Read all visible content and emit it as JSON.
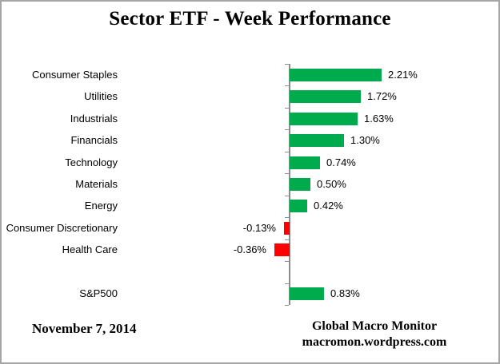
{
  "title": "Sector ETF - Week Performance",
  "chart_data": {
    "type": "bar",
    "orientation": "horizontal",
    "title": "Sector ETF - Week Performance",
    "categories": [
      "Consumer Staples",
      "Utilities",
      "Industrials",
      "Financials",
      "Technology",
      "Materials",
      "Energy",
      "Consumer Discretionary",
      "Health Care",
      "",
      "S&P500"
    ],
    "values": [
      2.21,
      1.72,
      1.63,
      1.3,
      0.74,
      0.5,
      0.42,
      -0.13,
      -0.36,
      null,
      0.83
    ],
    "value_labels": [
      "2.21%",
      "1.72%",
      "1.63%",
      "1.30%",
      "0.74%",
      "0.50%",
      "0.42%",
      "-0.13%",
      "-0.36%",
      "",
      "0.83%"
    ],
    "unit": "%",
    "positive_color": "#00AB4E",
    "negative_color": "#FF0000",
    "axis_color": "#8C8C8C",
    "value_axis_visible": false,
    "gridlines": false,
    "legend": "none"
  },
  "footer": {
    "date": "November 7, 2014",
    "source_line1": "Global Macro Monitor",
    "source_line2": "macromon.wordpress.com"
  }
}
